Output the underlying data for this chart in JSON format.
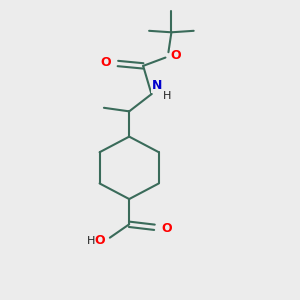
{
  "bg_color": "#ececec",
  "bond_color": "#3a6b5a",
  "O_color": "#ff0000",
  "N_color": "#0000cd",
  "line_width": 1.5,
  "font_size_atom": 9,
  "xlim": [
    0.0,
    1.0
  ],
  "ylim": [
    0.0,
    1.0
  ]
}
